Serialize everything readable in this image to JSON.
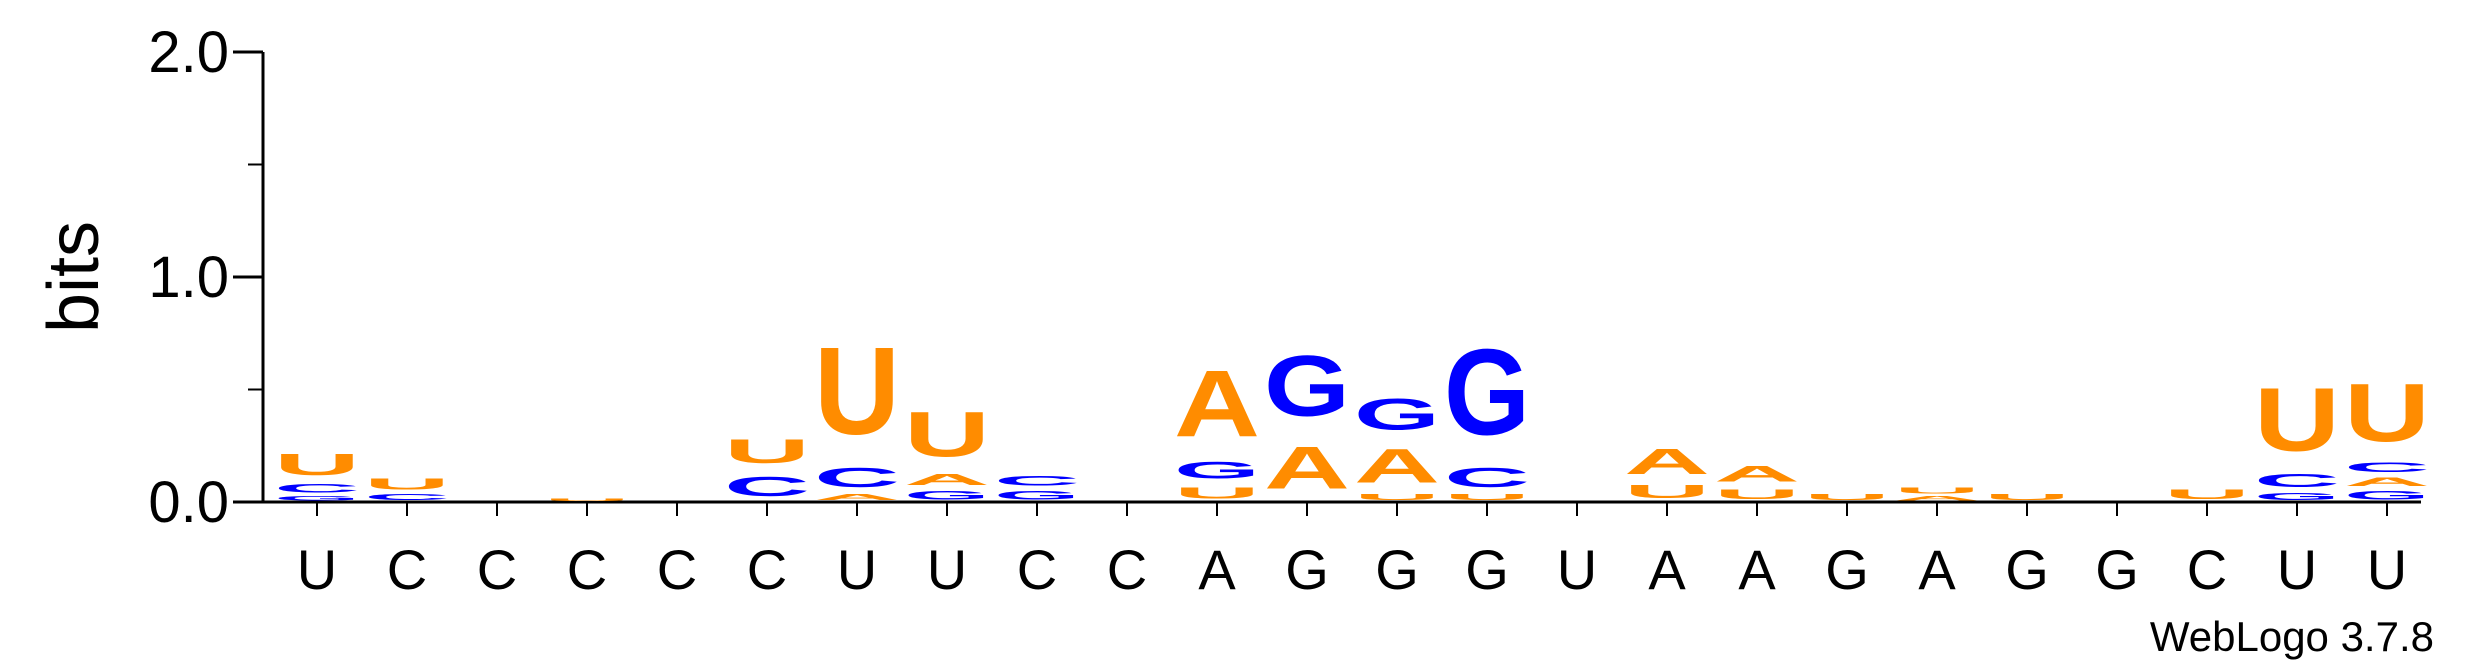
{
  "chart_data": {
    "type": "sequence-logo",
    "ylabel": "bits",
    "ylim": [
      0,
      2.0
    ],
    "yticks": [
      {
        "value": 0.0,
        "label": "0.0"
      },
      {
        "value": 1.0,
        "label": "1.0"
      },
      {
        "value": 2.0,
        "label": "2.0"
      }
    ],
    "credit": "WebLogo 3.7.8",
    "colors": {
      "A": "#ff8c00",
      "U": "#ff8c00",
      "C": "#0000ff",
      "G": "#0000ff"
    },
    "positions": [
      {
        "label": "U",
        "stack": [
          {
            "l": "G",
            "h": 0.03
          },
          {
            "l": "C",
            "h": 0.06
          },
          {
            "l": "U",
            "h": 0.15
          }
        ]
      },
      {
        "label": "C",
        "stack": [
          {
            "l": "C",
            "h": 0.04
          },
          {
            "l": "U",
            "h": 0.08
          }
        ]
      },
      {
        "label": "C",
        "stack": []
      },
      {
        "label": "C",
        "stack": [
          {
            "l": "U",
            "h": 0.02
          }
        ]
      },
      {
        "label": "C",
        "stack": []
      },
      {
        "label": "C",
        "stack": [
          {
            "l": "C",
            "h": 0.14
          },
          {
            "l": "U",
            "h": 0.17
          }
        ]
      },
      {
        "label": "U",
        "stack": [
          {
            "l": "A",
            "h": 0.04
          },
          {
            "l": "C",
            "h": 0.14
          },
          {
            "l": "U",
            "h": 0.62
          }
        ]
      },
      {
        "label": "U",
        "stack": [
          {
            "l": "G",
            "h": 0.06
          },
          {
            "l": "A",
            "h": 0.08
          },
          {
            "l": "U",
            "h": 0.32
          }
        ]
      },
      {
        "label": "C",
        "stack": [
          {
            "l": "G",
            "h": 0.06
          },
          {
            "l": "C",
            "h": 0.07
          }
        ]
      },
      {
        "label": "C",
        "stack": []
      },
      {
        "label": "A",
        "stack": [
          {
            "l": "U",
            "h": 0.08
          },
          {
            "l": "G",
            "h": 0.12
          },
          {
            "l": "A",
            "h": 0.47
          }
        ]
      },
      {
        "label": "G",
        "stack": [
          {
            "l": "A",
            "h": 0.3
          },
          {
            "l": "G",
            "h": 0.43
          }
        ]
      },
      {
        "label": "G",
        "stack": [
          {
            "l": "U",
            "h": 0.04
          },
          {
            "l": "A",
            "h": 0.24
          },
          {
            "l": "G",
            "h": 0.22
          }
        ]
      },
      {
        "label": "G",
        "stack": [
          {
            "l": "U",
            "h": 0.04
          },
          {
            "l": "C",
            "h": 0.14
          },
          {
            "l": "G",
            "h": 0.61
          }
        ]
      },
      {
        "label": "U",
        "stack": []
      },
      {
        "label": "A",
        "stack": [
          {
            "l": "U",
            "h": 0.09
          },
          {
            "l": "A",
            "h": 0.18
          }
        ]
      },
      {
        "label": "A",
        "stack": [
          {
            "l": "U",
            "h": 0.07
          },
          {
            "l": "A",
            "h": 0.11
          }
        ]
      },
      {
        "label": "G",
        "stack": [
          {
            "l": "U",
            "h": 0.04
          }
        ]
      },
      {
        "label": "A",
        "stack": [
          {
            "l": "A",
            "h": 0.03
          },
          {
            "l": "U",
            "h": 0.04
          }
        ]
      },
      {
        "label": "G",
        "stack": [
          {
            "l": "U",
            "h": 0.04
          }
        ]
      },
      {
        "label": "G",
        "stack": []
      },
      {
        "label": "C",
        "stack": [
          {
            "l": "U",
            "h": 0.07
          }
        ]
      },
      {
        "label": "U",
        "stack": [
          {
            "l": "G",
            "h": 0.05
          },
          {
            "l": "C",
            "h": 0.09
          },
          {
            "l": "U",
            "h": 0.45
          }
        ]
      },
      {
        "label": "U",
        "stack": [
          {
            "l": "G",
            "h": 0.06
          },
          {
            "l": "A",
            "h": 0.06
          },
          {
            "l": "C",
            "h": 0.07
          },
          {
            "l": "U",
            "h": 0.41
          }
        ]
      }
    ]
  }
}
